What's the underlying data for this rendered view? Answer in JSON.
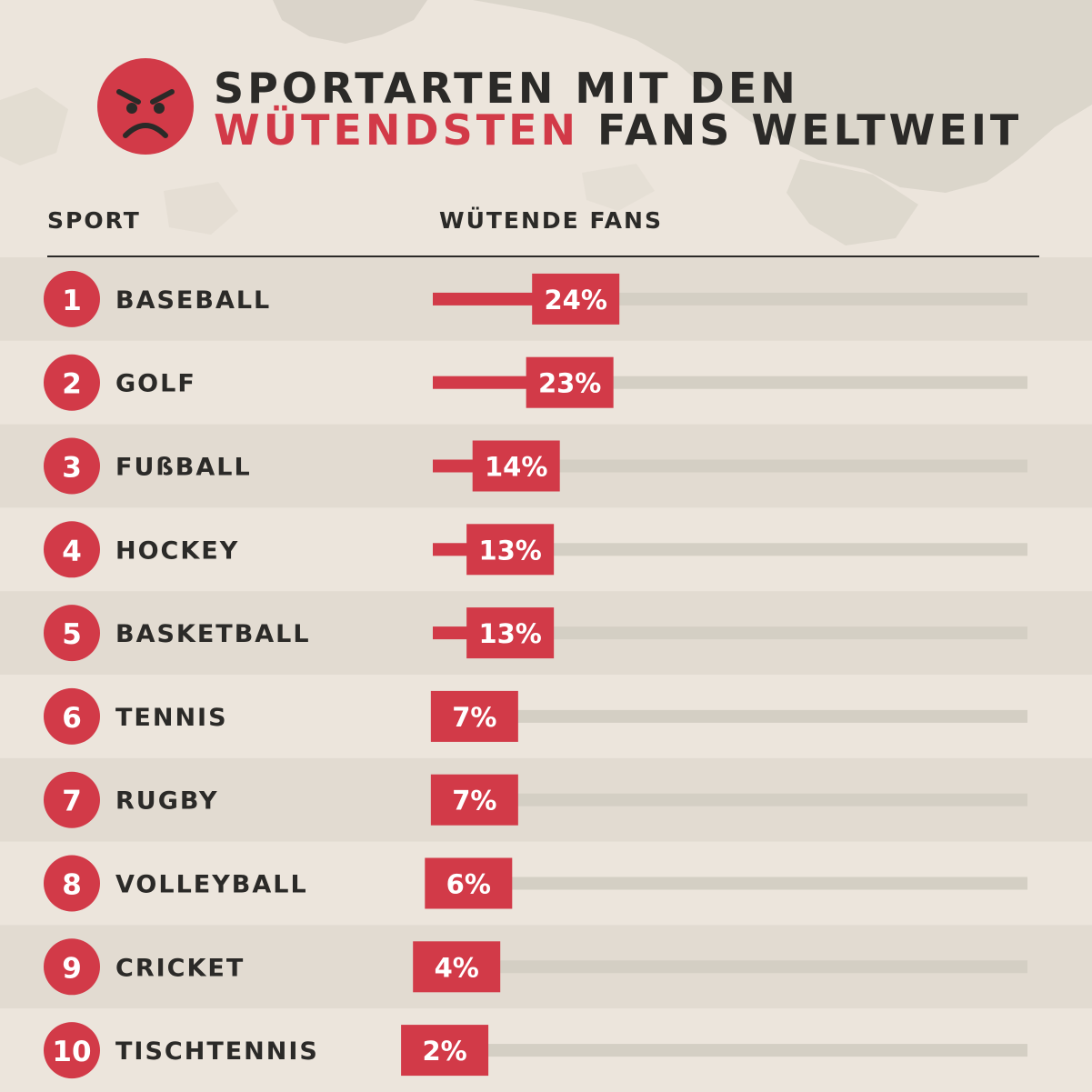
{
  "title": {
    "line1": "SPORTARTEN MIT DEN",
    "line2_highlight": "WÜTENDSTEN",
    "line2_rest": " FANS WELTWEIT"
  },
  "icon": "angry-face-icon",
  "headers": {
    "sport": "SPORT",
    "fans": "WÜTENDE FANS"
  },
  "colors": {
    "accent": "#d23a48",
    "text": "#2b2a28",
    "track": "#d4cfc4",
    "row_dark": "#e2dbd1",
    "row_light": "#ece5dc"
  },
  "chart_data": {
    "type": "bar",
    "orientation": "horizontal",
    "title": "SPORTARTEN MIT DEN WÜTENDSTEN FANS WELTWEIT",
    "xlabel": "WÜTENDE FANS",
    "ylabel": "SPORT",
    "unit": "%",
    "xlim": [
      0,
      100
    ],
    "ranks": [
      "1",
      "2",
      "3",
      "4",
      "5",
      "6",
      "7",
      "8",
      "9",
      "10"
    ],
    "categories": [
      "BASEBALL",
      "GOLF",
      "FUßBALL",
      "HOCKEY",
      "BASKETBALL",
      "TENNIS",
      "RUGBY",
      "VOLLEYBALL",
      "CRICKET",
      "TISCHTENNIS"
    ],
    "values": [
      24,
      23,
      14,
      13,
      13,
      7,
      7,
      6,
      4,
      2
    ],
    "labels": [
      "24%",
      "23%",
      "14%",
      "13%",
      "13%",
      "7%",
      "7%",
      "6%",
      "4%",
      "2%"
    ]
  }
}
